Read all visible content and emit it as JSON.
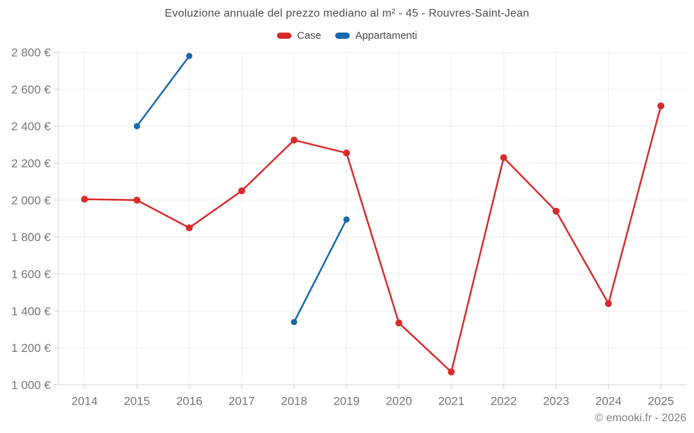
{
  "header": {
    "title": "Evoluzione annuale del prezzo mediano al m² - 45 - Rouvres-Saint-Jean"
  },
  "legend": {
    "items": [
      {
        "label": "Case",
        "color": "#d92b2b"
      },
      {
        "label": "Appartamenti",
        "color": "#1668a8"
      }
    ]
  },
  "footer": {
    "credit": "© emooki.fr - 2026"
  },
  "chart_data": {
    "type": "line",
    "title": "Evoluzione annuale del prezzo mediano al m² - 45 - Rouvres-Saint-Jean",
    "xlabel": "",
    "ylabel": "",
    "categories": [
      2014,
      2015,
      2016,
      2017,
      2018,
      2019,
      2020,
      2021,
      2022,
      2023,
      2024,
      2025
    ],
    "series": [
      {
        "name": "Case",
        "color": "#d92b2b",
        "values": [
          2005,
          2000,
          1850,
          2050,
          2325,
          2255,
          1335,
          1070,
          2230,
          1940,
          1440,
          2510
        ]
      },
      {
        "name": "Appartamenti",
        "color": "#1668a8",
        "values": [
          null,
          2400,
          2780,
          null,
          1340,
          1895,
          null,
          null,
          null,
          null,
          null,
          null
        ]
      }
    ],
    "ylim": [
      1000,
      2800
    ],
    "ytick_step": 200,
    "ytick_suffix": " €",
    "grid": true,
    "legend_position": "top"
  },
  "style": {
    "grid_color": "#ededed",
    "axis_color": "#d8d8d8",
    "tick_color": "#cfcfcf",
    "label_color": "#757575"
  }
}
